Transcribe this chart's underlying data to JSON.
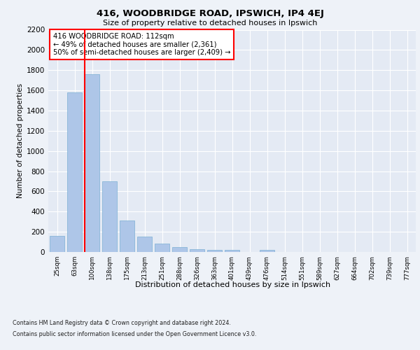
{
  "title1": "416, WOODBRIDGE ROAD, IPSWICH, IP4 4EJ",
  "title2": "Size of property relative to detached houses in Ipswich",
  "xlabel": "Distribution of detached houses by size in Ipswich",
  "ylabel": "Number of detached properties",
  "bar_labels": [
    "25sqm",
    "63sqm",
    "100sqm",
    "138sqm",
    "175sqm",
    "213sqm",
    "251sqm",
    "288sqm",
    "326sqm",
    "363sqm",
    "401sqm",
    "439sqm",
    "476sqm",
    "514sqm",
    "551sqm",
    "589sqm",
    "627sqm",
    "664sqm",
    "702sqm",
    "739sqm",
    "777sqm"
  ],
  "bar_values": [
    160,
    1580,
    1760,
    700,
    310,
    155,
    85,
    50,
    30,
    20,
    20,
    0,
    20,
    0,
    0,
    0,
    0,
    0,
    0,
    0,
    0
  ],
  "bar_color": "#aec6e8",
  "bar_edge_color": "#7bafd4",
  "red_line_index": 2,
  "annotation_title": "416 WOODBRIDGE ROAD: 112sqm",
  "annotation_line1": "← 49% of detached houses are smaller (2,361)",
  "annotation_line2": "50% of semi-detached houses are larger (2,409) →",
  "ylim": [
    0,
    2200
  ],
  "yticks": [
    0,
    200,
    400,
    600,
    800,
    1000,
    1200,
    1400,
    1600,
    1800,
    2000,
    2200
  ],
  "background_color": "#eef2f8",
  "plot_background": "#e4eaf4",
  "footer1": "Contains HM Land Registry data © Crown copyright and database right 2024.",
  "footer2": "Contains public sector information licensed under the Open Government Licence v3.0."
}
